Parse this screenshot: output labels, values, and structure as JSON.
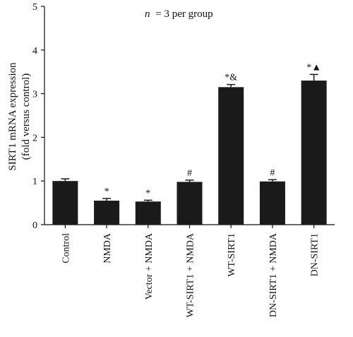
{
  "chart_data": {
    "type": "bar",
    "annotation_text": "= 3 per group",
    "annotation_italic": "n",
    "ylabel_line1": "SIRT1 mRNA expression",
    "ylabel_line2": "(fold versus control)",
    "ylim": [
      0,
      5
    ],
    "yticks": [
      "0",
      "1",
      "2",
      "3",
      "4",
      "5"
    ],
    "categories": [
      "Control",
      "NMDA",
      "Vector + NMDA",
      "WT-SIRT1 + NMDA",
      "WT-SIRT1",
      "DN-SIRT1 + NMDA",
      "DN-SIRT1"
    ],
    "values": [
      1.0,
      0.55,
      0.53,
      0.98,
      3.15,
      0.99,
      3.3
    ],
    "errors": [
      0.05,
      0.05,
      0.03,
      0.04,
      0.06,
      0.04,
      0.14
    ],
    "significance": [
      "",
      "*",
      "*",
      "#",
      "*&",
      "#",
      "*▲"
    ],
    "bar_color": "#1a1a1a",
    "grid": false
  }
}
